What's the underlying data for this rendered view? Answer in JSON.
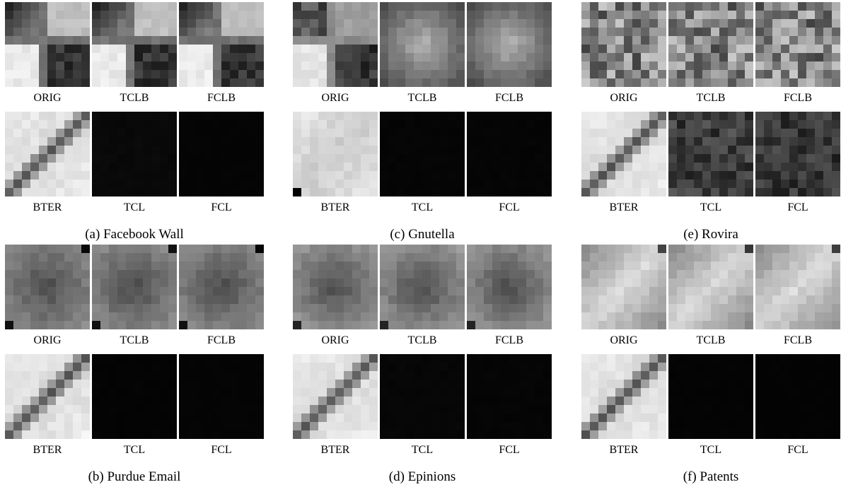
{
  "panels": [
    {
      "caption": "(a) Facebook Wall",
      "row1": [
        {
          "label": "ORIG",
          "pattern": "cross",
          "brightness": 1.0
        },
        {
          "label": "TCLB",
          "pattern": "cross",
          "brightness": 1.0
        },
        {
          "label": "FCLB",
          "pattern": "cross",
          "brightness": 1.0
        }
      ],
      "row2": [
        {
          "label": "BTER",
          "pattern": "diag",
          "brightness": 1.0
        },
        {
          "label": "TCL",
          "pattern": "dark",
          "brightness": 0.14
        },
        {
          "label": "FCL",
          "pattern": "dark",
          "brightness": 0.07
        }
      ]
    },
    {
      "caption": "(b) Purdue Email",
      "row1": [
        {
          "label": "ORIG",
          "pattern": "radial",
          "brightness": 1.0
        },
        {
          "label": "TCLB",
          "pattern": "radial",
          "brightness": 1.0
        },
        {
          "label": "FCLB",
          "pattern": "radial",
          "brightness": 1.0
        }
      ],
      "row2": [
        {
          "label": "BTER",
          "pattern": "diag",
          "brightness": 1.0
        },
        {
          "label": "TCL",
          "pattern": "dark",
          "brightness": 0.06
        },
        {
          "label": "FCL",
          "pattern": "dark",
          "brightness": 0.07
        }
      ]
    },
    {
      "caption": "(c) Gnutella",
      "row1": [
        {
          "label": "ORIG",
          "pattern": "cross2",
          "brightness": 1.0
        },
        {
          "label": "TCLB",
          "pattern": "center",
          "brightness": 1.0
        },
        {
          "label": "FCLB",
          "pattern": "center",
          "brightness": 1.0
        }
      ],
      "row2": [
        {
          "label": "BTER",
          "pattern": "soft",
          "brightness": 1.0
        },
        {
          "label": "TCL",
          "pattern": "dark",
          "brightness": 0.08
        },
        {
          "label": "FCL",
          "pattern": "dark",
          "brightness": 0.08
        }
      ]
    },
    {
      "caption": "(d) Epinions",
      "row1": [
        {
          "label": "ORIG",
          "pattern": "radial2",
          "brightness": 1.0
        },
        {
          "label": "TCLB",
          "pattern": "radial2",
          "brightness": 1.0
        },
        {
          "label": "FCLB",
          "pattern": "radial2",
          "brightness": 1.0
        }
      ],
      "row2": [
        {
          "label": "BTER",
          "pattern": "diag",
          "brightness": 1.0
        },
        {
          "label": "TCL",
          "pattern": "dark",
          "brightness": 0.1
        },
        {
          "label": "FCL",
          "pattern": "dark",
          "brightness": 0.08
        }
      ]
    },
    {
      "caption": "(e) Rovira",
      "row1": [
        {
          "label": "ORIG",
          "pattern": "noise",
          "brightness": 1.0
        },
        {
          "label": "TCLB",
          "pattern": "noise",
          "brightness": 1.0
        },
        {
          "label": "FCLB",
          "pattern": "noise",
          "brightness": 1.0
        }
      ],
      "row2": [
        {
          "label": "BTER",
          "pattern": "diag",
          "brightness": 1.0
        },
        {
          "label": "TCL",
          "pattern": "noise",
          "brightness": 0.45
        },
        {
          "label": "FCL",
          "pattern": "noise",
          "brightness": 0.4
        }
      ]
    },
    {
      "caption": "(f) Patents",
      "row1": [
        {
          "label": "ORIG",
          "pattern": "gradient",
          "brightness": 1.0
        },
        {
          "label": "TCLB",
          "pattern": "gradient",
          "brightness": 1.0
        },
        {
          "label": "FCLB",
          "pattern": "gradient",
          "brightness": 1.0
        }
      ],
      "row2": [
        {
          "label": "BTER",
          "pattern": "diag",
          "brightness": 1.0
        },
        {
          "label": "TCL",
          "pattern": "dark",
          "brightness": 0.06
        },
        {
          "label": "FCL",
          "pattern": "dark",
          "brightness": 0.05
        }
      ]
    }
  ]
}
